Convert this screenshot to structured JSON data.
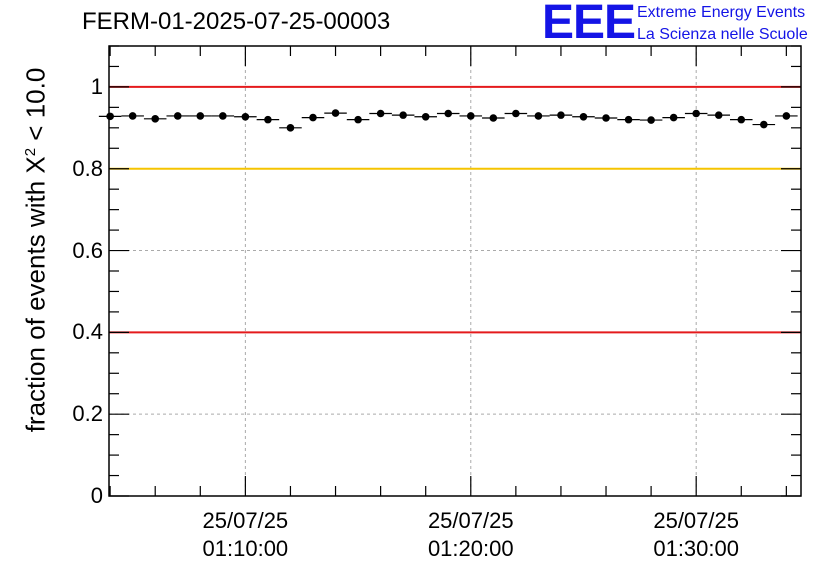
{
  "title": "FERM-01-2025-07-25-00003",
  "logo": {
    "acronym": "EEE",
    "line1": "Extreme Energy Events",
    "line2": "La Scienza nelle Scuole",
    "color": "#1414e6"
  },
  "chart_data": {
    "type": "scatter",
    "title": "FERM-01-2025-07-25-00003",
    "ylabel_prefix": "fraction of events with ",
    "ylabel_symbol": "X",
    "ylabel_exp": "2",
    "ylabel_suffix": " < 10.0",
    "xlabel": "",
    "ylim": [
      0,
      1.1
    ],
    "yticks": [
      {
        "value": 0,
        "label": "0"
      },
      {
        "value": 0.2,
        "label": "0.2"
      },
      {
        "value": 0.4,
        "label": "0.4"
      },
      {
        "value": 0.6,
        "label": "0.6"
      },
      {
        "value": 0.8,
        "label": "0.8"
      },
      {
        "value": 1,
        "label": "1"
      }
    ],
    "xlim_minutes": [
      3.15,
      33.85
    ],
    "xticks": [
      {
        "minute": 9.2,
        "date": "25/07/25",
        "time": "01:10:00"
      },
      {
        "minute": 19.2,
        "date": "25/07/25",
        "time": "01:20:00"
      },
      {
        "minute": 29.2,
        "date": "25/07/25",
        "time": "01:30:00"
      }
    ],
    "grid": true,
    "reference_lines": [
      {
        "value": 1.0,
        "color": "#e41a1c"
      },
      {
        "value": 0.8,
        "color": "#f5c400"
      },
      {
        "value": 0.4,
        "color": "#e41a1c"
      }
    ],
    "series": [
      {
        "name": "fraction",
        "x_minutes_start": 3.2,
        "bin_width_minutes": 1.0,
        "values": [
          0.928,
          0.929,
          0.922,
          0.929,
          0.929,
          0.929,
          0.927,
          0.92,
          0.9,
          0.925,
          0.936,
          0.92,
          0.935,
          0.931,
          0.927,
          0.935,
          0.929,
          0.924,
          0.935,
          0.929,
          0.931,
          0.927,
          0.924,
          0.92,
          0.919,
          0.925,
          0.935,
          0.931,
          0.92,
          0.908,
          0.929
        ]
      }
    ]
  }
}
